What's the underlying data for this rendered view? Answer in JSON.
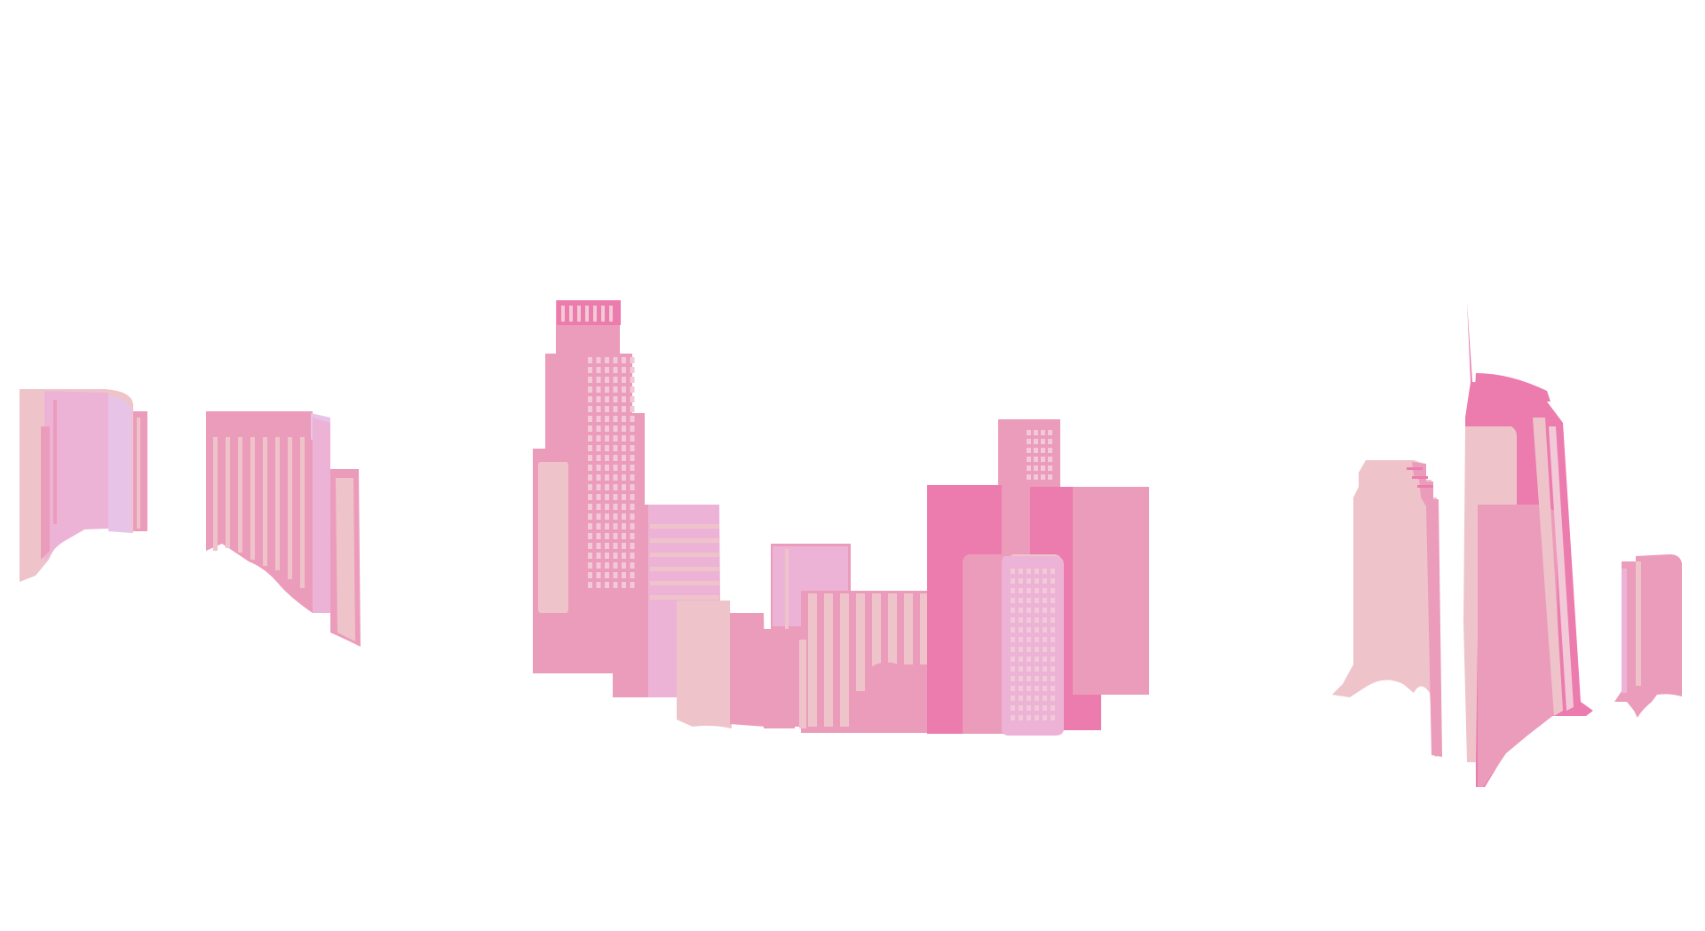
{
  "illustration": {
    "subject": "pink-city-skyline",
    "palette": {
      "light_pink": "#EEC4CA",
      "rose_pink": "#EC9CBB",
      "mauve_pink": "#EDB3D6",
      "lilac": "#E7C3E8",
      "hot_pink": "#EC7BAE",
      "window_light": "#F2C9D6",
      "background": "#FFFFFF"
    },
    "groups": [
      "left-building-cluster",
      "center-building-cluster",
      "right-building-cluster"
    ]
  }
}
